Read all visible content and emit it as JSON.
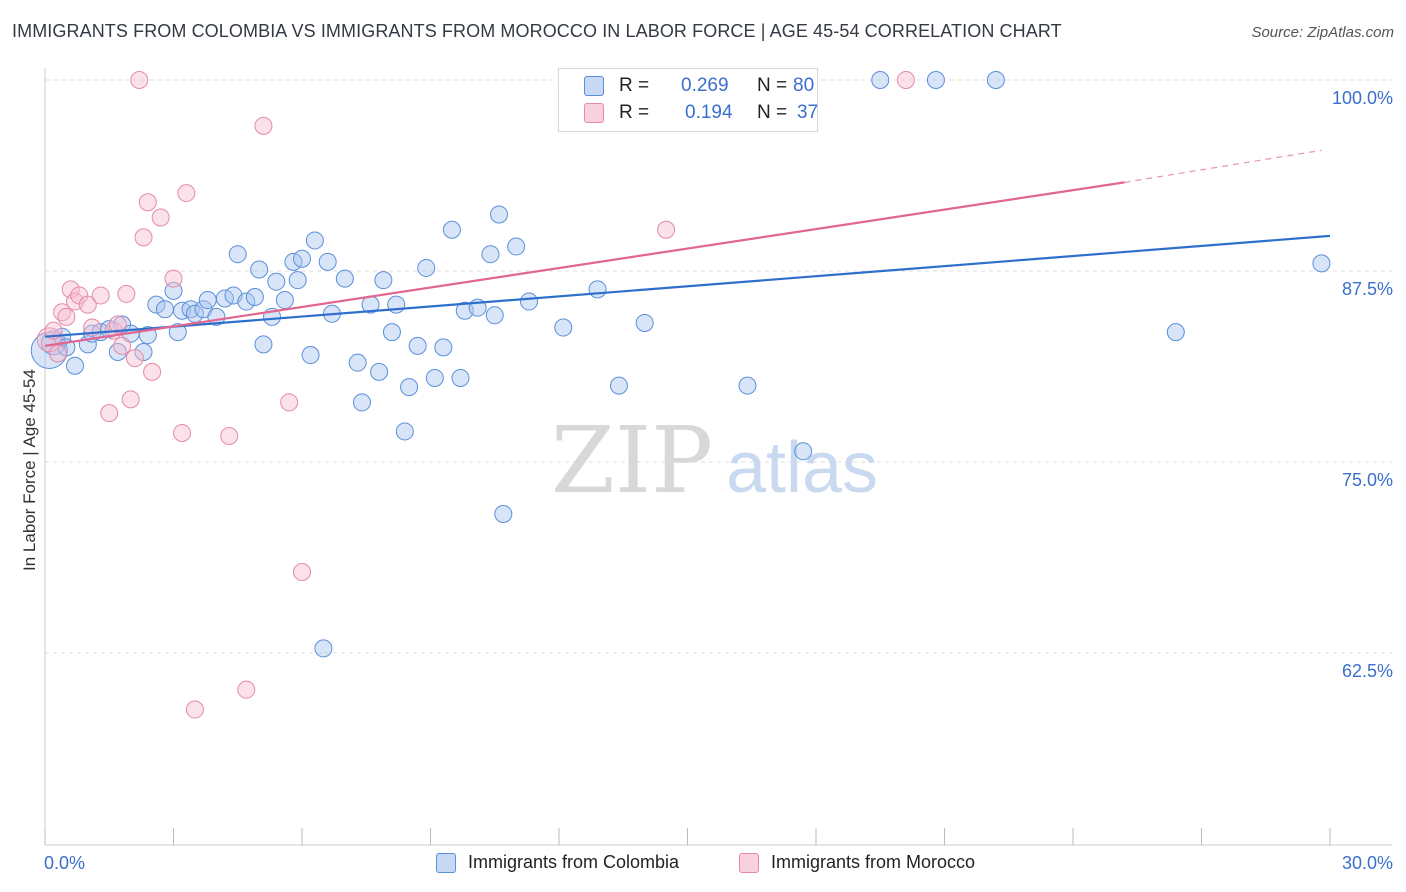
{
  "title": "IMMIGRANTS FROM COLOMBIA VS IMMIGRANTS FROM MOROCCO IN LABOR FORCE | AGE 45-54 CORRELATION CHART",
  "source": "Source: ZipAtlas.com",
  "watermark": {
    "zip": "ZIP",
    "atlas": "atlas"
  },
  "legend": {
    "r_label": "R =",
    "n_label": "N =",
    "colombia": {
      "r": "0.269",
      "n": "80"
    },
    "morocco": {
      "r": "0.194",
      "n": "37"
    }
  },
  "colors": {
    "colombia_fill": "#a9c6ef",
    "colombia_stroke": "#5b8fd9",
    "colombia_line": "#2f6fcc",
    "morocco_fill": "#f6bcd0",
    "morocco_stroke": "#e58aaa",
    "morocco_line": "#e2668f",
    "axis_text": "#3a6fcc",
    "grid": "#dddddd"
  },
  "chart_data": {
    "type": "scatter",
    "xlabel": "",
    "ylabel": "In Labor Force | Age 45-54",
    "xlim": [
      0,
      30
    ],
    "ylim": [
      50,
      100
    ],
    "x_tick_labels": [
      {
        "value": 0,
        "label": "0.0%"
      },
      {
        "value": 30,
        "label": "30.0%"
      }
    ],
    "y_tick_labels": [
      {
        "value": 100,
        "label": "100.0%"
      },
      {
        "value": 87.5,
        "label": "87.5%"
      },
      {
        "value": 75,
        "label": "75.0%"
      },
      {
        "value": 62.5,
        "label": "62.5%"
      }
    ],
    "series": [
      {
        "name": "Immigrants from Colombia",
        "key": "colombia",
        "trend": {
          "x0": 0,
          "y0": 83.2,
          "x1": 30,
          "y1": 89.8
        },
        "points": [
          [
            0.1,
            82.3,
            3
          ],
          [
            0.2,
            82.8,
            2
          ],
          [
            0.4,
            83.2,
            1
          ],
          [
            0.5,
            82.5,
            1
          ],
          [
            0.7,
            81.3,
            1
          ],
          [
            1.0,
            82.7,
            1
          ],
          [
            1.1,
            83.4,
            1
          ],
          [
            1.3,
            83.5,
            1
          ],
          [
            1.5,
            83.7,
            1
          ],
          [
            1.7,
            82.2,
            1
          ],
          [
            1.8,
            84.0,
            1
          ],
          [
            2.0,
            83.4,
            1
          ],
          [
            2.3,
            82.2,
            1
          ],
          [
            2.4,
            83.3,
            1
          ],
          [
            2.6,
            85.3,
            1
          ],
          [
            2.8,
            85.0,
            1
          ],
          [
            3.0,
            86.2,
            1
          ],
          [
            3.1,
            83.5,
            1
          ],
          [
            3.2,
            84.9,
            1
          ],
          [
            3.4,
            85.0,
            1
          ],
          [
            3.5,
            84.7,
            1
          ],
          [
            3.7,
            85.0,
            1
          ],
          [
            3.8,
            85.6,
            1
          ],
          [
            4.0,
            84.5,
            1
          ],
          [
            4.2,
            85.7,
            1
          ],
          [
            4.4,
            85.9,
            1
          ],
          [
            4.5,
            88.6,
            1
          ],
          [
            4.7,
            85.5,
            1
          ],
          [
            4.9,
            85.8,
            1
          ],
          [
            5.0,
            87.6,
            1
          ],
          [
            5.1,
            82.7,
            1
          ],
          [
            5.3,
            84.5,
            1
          ],
          [
            5.4,
            86.8,
            1
          ],
          [
            5.6,
            85.6,
            1
          ],
          [
            5.8,
            88.1,
            1
          ],
          [
            5.9,
            86.9,
            1
          ],
          [
            6.0,
            88.3,
            1
          ],
          [
            6.2,
            82.0,
            1
          ],
          [
            6.3,
            89.5,
            1
          ],
          [
            6.5,
            62.8,
            1
          ],
          [
            6.6,
            88.1,
            1
          ],
          [
            6.7,
            84.7,
            1
          ],
          [
            7.0,
            87.0,
            1
          ],
          [
            7.3,
            81.5,
            1
          ],
          [
            7.4,
            78.9,
            1
          ],
          [
            7.6,
            85.3,
            1
          ],
          [
            7.8,
            80.9,
            1
          ],
          [
            7.9,
            86.9,
            1
          ],
          [
            8.1,
            83.5,
            1
          ],
          [
            8.2,
            85.3,
            1
          ],
          [
            8.4,
            77.0,
            1
          ],
          [
            8.5,
            79.9,
            1
          ],
          [
            8.7,
            82.6,
            1
          ],
          [
            8.9,
            87.7,
            1
          ],
          [
            9.1,
            80.5,
            1
          ],
          [
            9.3,
            82.5,
            1
          ],
          [
            9.5,
            90.2,
            1
          ],
          [
            9.7,
            80.5,
            1
          ],
          [
            9.8,
            84.9,
            1
          ],
          [
            10.1,
            85.1,
            1
          ],
          [
            10.4,
            88.6,
            1
          ],
          [
            10.5,
            84.6,
            1
          ],
          [
            10.6,
            91.2,
            1
          ],
          [
            10.7,
            71.6,
            1
          ],
          [
            11.0,
            89.1,
            1
          ],
          [
            11.3,
            85.5,
            1
          ],
          [
            12.1,
            83.8,
            1
          ],
          [
            12.9,
            86.3,
            1
          ],
          [
            13.4,
            80.0,
            1
          ],
          [
            14.0,
            84.1,
            1
          ],
          [
            16.4,
            80.0,
            1
          ],
          [
            17.7,
            75.7,
            1
          ],
          [
            19.5,
            100.0,
            1
          ],
          [
            20.8,
            100.0,
            1
          ],
          [
            22.2,
            100.0,
            1
          ],
          [
            26.4,
            83.5,
            1
          ],
          [
            29.8,
            88.0,
            1
          ]
        ]
      },
      {
        "name": "Immigrants from Morocco",
        "key": "morocco",
        "trend": {
          "x0": 0,
          "y0": 82.6,
          "x1": 25.2,
          "y1": 93.3,
          "dash_x1": 29.8,
          "dash_y1": 95.4
        },
        "points": [
          [
            0.1,
            83.0,
            2
          ],
          [
            0.2,
            83.6,
            1
          ],
          [
            0.3,
            82.1,
            1
          ],
          [
            0.4,
            84.8,
            1
          ],
          [
            0.5,
            84.5,
            1
          ],
          [
            0.6,
            86.3,
            1
          ],
          [
            0.7,
            85.5,
            1
          ],
          [
            0.8,
            85.9,
            1
          ],
          [
            1.0,
            85.3,
            1
          ],
          [
            1.1,
            83.8,
            1
          ],
          [
            1.3,
            85.9,
            1
          ],
          [
            1.5,
            78.2,
            1
          ],
          [
            1.6,
            83.6,
            1
          ],
          [
            1.7,
            84.0,
            1
          ],
          [
            1.8,
            82.6,
            1
          ],
          [
            1.9,
            86.0,
            1
          ],
          [
            2.0,
            79.1,
            1
          ],
          [
            2.1,
            81.8,
            1
          ],
          [
            2.2,
            100.0,
            1
          ],
          [
            2.3,
            89.7,
            1
          ],
          [
            2.4,
            92.0,
            1
          ],
          [
            2.5,
            80.9,
            1
          ],
          [
            2.7,
            91.0,
            1
          ],
          [
            3.0,
            87.0,
            1
          ],
          [
            3.2,
            76.9,
            1
          ],
          [
            3.3,
            92.6,
            1
          ],
          [
            3.5,
            58.8,
            1
          ],
          [
            4.3,
            76.7,
            1
          ],
          [
            4.7,
            60.1,
            1
          ],
          [
            5.1,
            97.0,
            1
          ],
          [
            5.7,
            78.9,
            1
          ],
          [
            6.0,
            67.8,
            1
          ],
          [
            14.5,
            90.2,
            1
          ],
          [
            20.1,
            100.0,
            1
          ]
        ]
      }
    ]
  }
}
